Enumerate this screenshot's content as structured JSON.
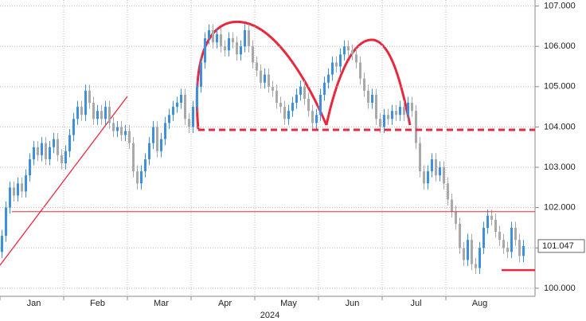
{
  "chart_data": {
    "type": "candlestick",
    "x_label": "2024",
    "categories": [
      null,
      null,
      null,
      null,
      null,
      null,
      null,
      null,
      "Jan",
      null,
      null,
      null,
      null,
      null,
      null,
      null,
      null,
      null,
      null,
      null,
      null,
      null,
      null,
      null,
      "Feb",
      null,
      null,
      null,
      null,
      null,
      null,
      null,
      null,
      null,
      null,
      null,
      null,
      null,
      null,
      null,
      "Mar",
      null,
      null,
      null,
      null,
      null,
      null,
      null,
      null,
      null,
      null,
      null,
      null,
      null,
      null,
      null,
      "Apr",
      null,
      null,
      null,
      null,
      null,
      null,
      null,
      null,
      null,
      null,
      null,
      null,
      null,
      null,
      null,
      "May",
      null,
      null,
      null,
      null,
      null,
      null,
      null,
      null,
      null,
      null,
      null,
      null,
      null,
      null,
      null,
      "Jun",
      null,
      null,
      null,
      null,
      null,
      null,
      null,
      null,
      null,
      null,
      null,
      null,
      null,
      null,
      null,
      "Jul",
      null,
      null,
      null,
      null,
      null,
      null,
      null,
      null,
      null,
      null,
      null,
      null,
      null,
      null,
      null,
      "Aug",
      null,
      null,
      null,
      null,
      null,
      null,
      null,
      null,
      null,
      null,
      null
    ],
    "open": [
      100.9,
      101.3,
      102.0,
      102.5,
      102.3,
      102.6,
      102.4,
      102.8,
      103.2,
      103.5,
      103.3,
      103.6,
      103.2,
      103.5,
      103.7,
      103.3,
      103.1,
      103.4,
      103.8,
      104.2,
      104.5,
      104.3,
      104.9,
      104.6,
      104.2,
      104.4,
      104.2,
      104.5,
      104.1,
      103.9,
      104.0,
      103.8,
      103.9,
      103.6,
      102.9,
      102.6,
      102.9,
      103.2,
      103.6,
      104.0,
      103.4,
      103.7,
      104.1,
      104.3,
      104.5,
      104.6,
      104.8,
      104.2,
      104.0,
      104.5,
      105.0,
      105.6,
      106.2,
      106.4,
      106.1,
      106.3,
      106.0,
      105.9,
      106.2,
      106.1,
      105.8,
      106.0,
      106.4,
      106.0,
      105.6,
      105.4,
      105.1,
      105.3,
      105.0,
      104.9,
      104.6,
      104.5,
      104.2,
      104.4,
      104.6,
      104.8,
      105.0,
      104.7,
      104.4,
      104.1,
      104.3,
      104.8,
      105.1,
      105.3,
      105.6,
      105.5,
      105.8,
      106.0,
      105.9,
      105.8,
      105.6,
      105.2,
      104.9,
      104.6,
      104.8,
      104.2,
      104.0,
      104.3,
      104.2,
      104.4,
      104.3,
      104.5,
      104.3,
      104.6,
      104.4,
      103.6,
      102.9,
      102.6,
      102.9,
      103.2,
      102.8,
      103.0,
      102.6,
      102.2,
      101.9,
      101.6,
      101.0,
      100.7,
      101.2,
      100.6,
      100.5,
      101.0,
      101.5,
      101.8,
      101.7,
      101.4,
      101.2,
      101.0,
      100.9,
      101.5,
      101.2,
      100.8
    ],
    "high": [
      101.45,
      102.15,
      102.65,
      102.65,
      102.75,
      102.75,
      102.95,
      103.35,
      103.65,
      103.65,
      103.75,
      103.75,
      103.65,
      103.85,
      103.85,
      103.45,
      103.55,
      103.95,
      104.35,
      104.65,
      104.65,
      105.05,
      105.05,
      104.75,
      104.55,
      104.55,
      104.65,
      104.65,
      104.25,
      104.15,
      104.15,
      104.05,
      104.05,
      103.75,
      103.05,
      103.05,
      103.35,
      103.75,
      104.15,
      104.15,
      103.85,
      104.25,
      104.45,
      104.65,
      104.75,
      104.95,
      104.95,
      104.35,
      104.65,
      105.15,
      105.75,
      106.35,
      106.55,
      106.55,
      106.45,
      106.45,
      106.15,
      106.35,
      106.35,
      106.25,
      106.15,
      106.55,
      106.55,
      106.15,
      105.75,
      105.55,
      105.45,
      105.45,
      105.15,
      105.05,
      104.75,
      104.65,
      104.55,
      104.75,
      104.95,
      105.15,
      105.15,
      104.85,
      104.55,
      104.45,
      104.95,
      105.25,
      105.45,
      105.75,
      105.75,
      105.95,
      106.15,
      106.15,
      106.05,
      105.95,
      105.75,
      105.35,
      105.05,
      104.95,
      104.95,
      104.35,
      104.45,
      104.45,
      104.55,
      104.55,
      104.65,
      104.65,
      104.75,
      104.75,
      104.55,
      103.75,
      103.05,
      103.05,
      103.35,
      103.35,
      103.15,
      103.15,
      102.75,
      102.35,
      102.05,
      101.75,
      101.15,
      101.35,
      101.35,
      100.75,
      101.15,
      101.65,
      101.95,
      101.95,
      101.85,
      101.55,
      101.35,
      101.15,
      101.65,
      101.65,
      101.35,
      101.2
    ],
    "low": [
      100.75,
      101.15,
      101.85,
      102.15,
      102.15,
      102.25,
      102.25,
      102.65,
      103.05,
      103.15,
      103.15,
      103.05,
      103.05,
      103.35,
      103.15,
      102.95,
      102.95,
      103.25,
      103.65,
      104.05,
      104.15,
      104.15,
      104.45,
      104.05,
      104.05,
      104.05,
      104.05,
      103.95,
      103.75,
      103.75,
      103.65,
      103.65,
      103.45,
      102.75,
      102.45,
      102.45,
      102.75,
      103.05,
      103.45,
      103.25,
      103.25,
      103.55,
      103.95,
      104.15,
      104.35,
      104.45,
      104.05,
      103.85,
      103.85,
      104.35,
      104.85,
      105.45,
      106.05,
      105.95,
      105.95,
      105.85,
      105.75,
      105.75,
      105.95,
      105.65,
      105.65,
      105.85,
      105.85,
      105.45,
      105.25,
      104.95,
      104.95,
      104.85,
      104.75,
      104.45,
      104.35,
      104.05,
      104.05,
      104.25,
      104.45,
      104.65,
      104.55,
      104.25,
      103.95,
      103.95,
      104.15,
      104.65,
      104.95,
      105.15,
      105.35,
      105.35,
      105.65,
      105.75,
      105.65,
      105.45,
      105.05,
      104.75,
      104.45,
      104.45,
      104.05,
      103.85,
      103.85,
      104.05,
      104.05,
      104.15,
      104.15,
      104.15,
      104.15,
      104.25,
      103.45,
      102.75,
      102.45,
      102.45,
      102.75,
      102.65,
      102.65,
      102.45,
      102.05,
      101.75,
      101.45,
      100.85,
      100.55,
      100.55,
      100.45,
      100.35,
      100.35,
      100.85,
      101.35,
      101.55,
      101.25,
      101.05,
      100.85,
      100.75,
      100.75,
      101.05,
      100.65,
      100.65
    ],
    "close": [
      101.3,
      102.0,
      102.5,
      102.3,
      102.6,
      102.4,
      102.8,
      103.2,
      103.5,
      103.3,
      103.6,
      103.2,
      103.5,
      103.7,
      103.3,
      103.1,
      103.4,
      103.8,
      104.2,
      104.5,
      104.3,
      104.9,
      104.6,
      104.2,
      104.4,
      104.2,
      104.5,
      104.1,
      103.9,
      104.0,
      103.8,
      103.9,
      103.6,
      102.9,
      102.6,
      102.9,
      103.2,
      103.6,
      104.0,
      103.4,
      103.7,
      104.1,
      104.3,
      104.5,
      104.6,
      104.8,
      104.2,
      104.0,
      104.5,
      105.0,
      105.6,
      106.2,
      106.4,
      106.1,
      106.3,
      106.0,
      105.9,
      106.2,
      106.1,
      105.8,
      106.0,
      106.4,
      106.0,
      105.6,
      105.4,
      105.1,
      105.3,
      105.0,
      104.9,
      104.6,
      104.5,
      104.2,
      104.4,
      104.6,
      104.8,
      105.0,
      104.7,
      104.4,
      104.1,
      104.3,
      104.8,
      105.1,
      105.3,
      105.6,
      105.5,
      105.8,
      106.0,
      105.9,
      105.8,
      105.6,
      105.2,
      104.9,
      104.6,
      104.8,
      104.2,
      104.0,
      104.3,
      104.2,
      104.4,
      104.3,
      104.5,
      104.3,
      104.6,
      104.4,
      103.6,
      102.9,
      102.6,
      102.9,
      103.2,
      102.8,
      103.0,
      102.6,
      102.2,
      101.9,
      101.6,
      101.0,
      100.7,
      101.2,
      100.6,
      100.5,
      101.0,
      101.5,
      101.8,
      101.7,
      101.4,
      101.2,
      101.0,
      100.9,
      101.5,
      101.2,
      100.8,
      101.047
    ],
    "up_color": "#3d8fe0",
    "down_color": "#a9a9a9",
    "last_value": 101.047,
    "levels": [
      {
        "value": 103.93,
        "style": "dashed"
      },
      {
        "value": 101.9,
        "style": "thin"
      },
      {
        "value": 100.45,
        "style": "thick"
      }
    ],
    "level_color": "#e8283c",
    "ylim": [
      99.8,
      107.15
    ],
    "yticks": [
      {
        "value": 100,
        "label": "100.000"
      },
      {
        "value": 101,
        "label": "101.000"
      },
      {
        "value": 102,
        "label": "102.000"
      },
      {
        "value": 103,
        "label": "103.000"
      },
      {
        "value": 104,
        "label": "104.000"
      },
      {
        "value": 105,
        "label": "105.000"
      },
      {
        "value": 106,
        "label": "106.000"
      },
      {
        "value": 107,
        "label": "107.000"
      }
    ],
    "grid": true
  }
}
